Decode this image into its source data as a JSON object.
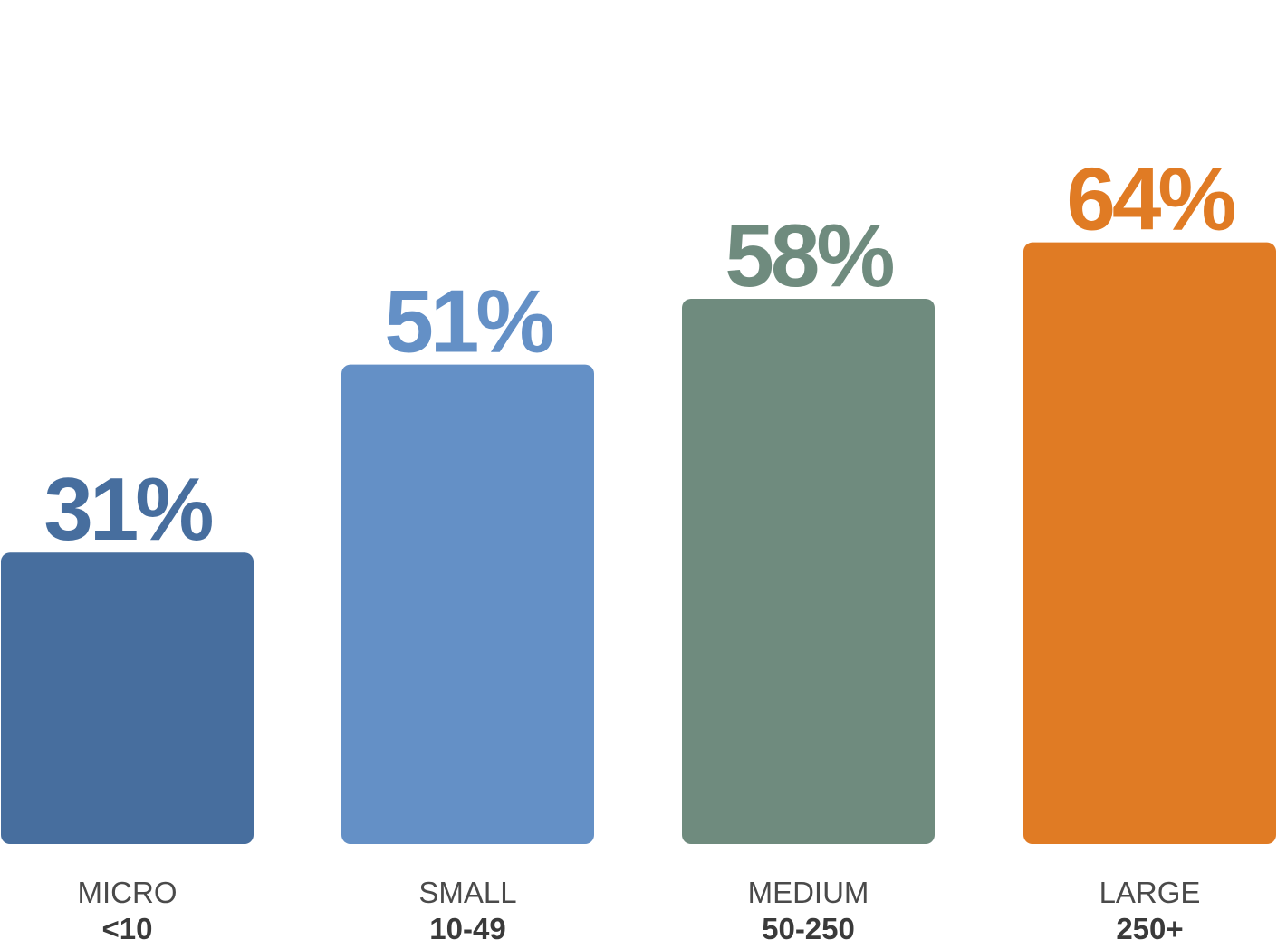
{
  "chart_data": {
    "type": "bar",
    "categories": [
      {
        "name": "MICRO",
        "range": "<10"
      },
      {
        "name": "SMALL",
        "range": "10-49"
      },
      {
        "name": "MEDIUM",
        "range": "50-250"
      },
      {
        "name": "LARGE",
        "range": "250+"
      }
    ],
    "values": [
      31,
      51,
      58,
      64
    ],
    "value_labels": [
      "31%",
      "51%",
      "58%",
      "64%"
    ],
    "colors": [
      "#476e9e",
      "#6490c6",
      "#6f8b7e",
      "#e07b24"
    ],
    "ylim": [
      0,
      100
    ],
    "grid": false,
    "legend": "none"
  }
}
